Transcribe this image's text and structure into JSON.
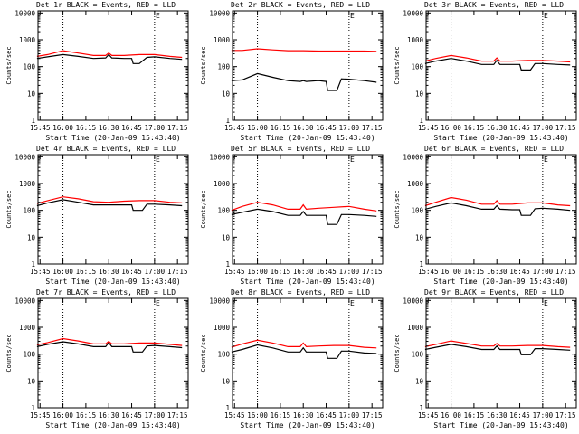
{
  "figure": {
    "axis_label_x": "Start Time (20-Jan-09 15:43:40)",
    "axis_label_y": "Counts/sec",
    "x_ticks": [
      "15:45",
      "16:00",
      "16:15",
      "16:30",
      "16:45",
      "17:00",
      "17:15"
    ],
    "y_ticks": [
      "1",
      "10",
      "100",
      "1000",
      "10000"
    ]
  },
  "chart_data": [
    {
      "type": "line",
      "title": "Det 1r BLACK = Events, RED = LLD",
      "yscale": "log",
      "ylim": [
        1,
        12000
      ],
      "xlim": [
        "15:43:40",
        "17:22"
      ],
      "vlines": [
        "16:00",
        "17:00"
      ],
      "corner_mark": "E",
      "series": [
        {
          "name": "BLACK = Events",
          "color": "#000000",
          "x": [
            "15:43",
            "15:50",
            "16:00",
            "16:10",
            "16:20",
            "16:28",
            "16:30",
            "16:32",
            "16:40",
            "16:45",
            "16:46",
            "16:50",
            "16:55",
            "17:00",
            "17:10",
            "17:18"
          ],
          "values": [
            200,
            230,
            280,
            240,
            200,
            210,
            280,
            210,
            200,
            200,
            130,
            130,
            220,
            230,
            200,
            185
          ]
        },
        {
          "name": "RED = LLD",
          "color": "#ff0000",
          "x": [
            "15:43",
            "15:50",
            "16:00",
            "16:10",
            "16:20",
            "16:28",
            "16:30",
            "16:32",
            "16:40",
            "16:50",
            "17:00",
            "17:10",
            "17:18"
          ],
          "values": [
            240,
            280,
            390,
            320,
            260,
            260,
            320,
            260,
            260,
            280,
            280,
            240,
            220
          ]
        }
      ]
    },
    {
      "type": "line",
      "title": "Det 2r BLACK = Events, RED = LLD",
      "yscale": "log",
      "ylim": [
        1,
        12000
      ],
      "xlim": [
        "15:43:40",
        "17:22"
      ],
      "vlines": [
        "16:00",
        "17:00"
      ],
      "corner_mark": "E",
      "series": [
        {
          "name": "BLACK = Events",
          "color": "#000000",
          "x": [
            "15:43",
            "15:50",
            "16:00",
            "16:10",
            "16:20",
            "16:28",
            "16:30",
            "16:32",
            "16:40",
            "16:45",
            "16:46",
            "16:52",
            "16:55",
            "17:00",
            "17:10",
            "17:18"
          ],
          "values": [
            30,
            32,
            55,
            40,
            30,
            28,
            30,
            28,
            30,
            28,
            13,
            13,
            35,
            34,
            30,
            26
          ]
        },
        {
          "name": "RED = LLD",
          "color": "#ff0000",
          "x": [
            "15:43",
            "15:50",
            "16:00",
            "16:10",
            "16:20",
            "16:30",
            "16:40",
            "16:50",
            "17:00",
            "17:10",
            "17:18"
          ],
          "values": [
            400,
            400,
            460,
            420,
            390,
            390,
            380,
            380,
            380,
            380,
            370
          ]
        }
      ]
    },
    {
      "type": "line",
      "title": "Det 3r BLACK = Events, RED = LLD",
      "yscale": "log",
      "ylim": [
        1,
        12000
      ],
      "xlim": [
        "15:43:40",
        "17:22"
      ],
      "vlines": [
        "16:00",
        "17:00"
      ],
      "corner_mark": "E",
      "series": [
        {
          "name": "BLACK = Events",
          "color": "#000000",
          "x": [
            "15:43",
            "15:50",
            "16:00",
            "16:10",
            "16:20",
            "16:28",
            "16:30",
            "16:32",
            "16:40",
            "16:45",
            "16:46",
            "16:52",
            "16:55",
            "17:00",
            "17:10",
            "17:18"
          ],
          "values": [
            130,
            160,
            200,
            160,
            120,
            120,
            170,
            120,
            120,
            120,
            75,
            75,
            130,
            130,
            120,
            115
          ]
        },
        {
          "name": "RED = LLD",
          "color": "#ff0000",
          "x": [
            "15:43",
            "15:50",
            "16:00",
            "16:10",
            "16:20",
            "16:28",
            "16:30",
            "16:32",
            "16:40",
            "16:50",
            "17:00",
            "17:10",
            "17:18"
          ],
          "values": [
            160,
            200,
            260,
            210,
            160,
            160,
            210,
            160,
            160,
            170,
            170,
            160,
            150
          ]
        }
      ]
    },
    {
      "type": "line",
      "title": "Det 4r BLACK = Events, RED = LLD",
      "yscale": "log",
      "ylim": [
        1,
        12000
      ],
      "xlim": [
        "15:43:40",
        "17:22"
      ],
      "vlines": [
        "16:00",
        "17:00"
      ],
      "corner_mark": "E",
      "series": [
        {
          "name": "BLACK = Events",
          "color": "#000000",
          "x": [
            "15:43",
            "15:50",
            "16:00",
            "16:10",
            "16:20",
            "16:30",
            "16:40",
            "16:45",
            "16:46",
            "16:52",
            "16:55",
            "17:00",
            "17:10",
            "17:18"
          ],
          "values": [
            150,
            190,
            250,
            200,
            160,
            160,
            160,
            160,
            100,
            100,
            170,
            170,
            160,
            150
          ]
        },
        {
          "name": "RED = LLD",
          "color": "#ff0000",
          "x": [
            "15:43",
            "15:50",
            "16:00",
            "16:10",
            "16:20",
            "16:30",
            "16:40",
            "16:50",
            "17:00",
            "17:10",
            "17:18"
          ],
          "values": [
            180,
            230,
            320,
            270,
            210,
            200,
            220,
            230,
            230,
            200,
            190
          ]
        }
      ]
    },
    {
      "type": "line",
      "title": "Det 5r BLACK = Events, RED = LLD",
      "yscale": "log",
      "ylim": [
        1,
        12000
      ],
      "xlim": [
        "15:43:40",
        "17:22"
      ],
      "vlines": [
        "16:00",
        "17:00"
      ],
      "corner_mark": "E",
      "series": [
        {
          "name": "BLACK = Events",
          "color": "#000000",
          "x": [
            "15:43",
            "15:50",
            "16:00",
            "16:10",
            "16:20",
            "16:28",
            "16:30",
            "16:32",
            "16:40",
            "16:45",
            "16:46",
            "16:52",
            "16:55",
            "17:00",
            "17:10",
            "17:18"
          ],
          "values": [
            70,
            85,
            110,
            90,
            65,
            65,
            90,
            65,
            65,
            65,
            30,
            30,
            70,
            70,
            65,
            60
          ]
        },
        {
          "name": "RED = LLD",
          "color": "#ff0000",
          "x": [
            "15:43",
            "15:50",
            "16:00",
            "16:10",
            "16:20",
            "16:28",
            "16:30",
            "16:32",
            "16:40",
            "16:50",
            "17:00",
            "17:10",
            "17:18"
          ],
          "values": [
            100,
            140,
            200,
            160,
            110,
            110,
            160,
            110,
            120,
            130,
            140,
            110,
            95
          ]
        }
      ]
    },
    {
      "type": "line",
      "title": "Det 6r BLACK = Events, RED = LLD",
      "yscale": "log",
      "ylim": [
        1,
        12000
      ],
      "xlim": [
        "15:43:40",
        "17:22"
      ],
      "vlines": [
        "16:00",
        "17:00"
      ],
      "corner_mark": "E",
      "series": [
        {
          "name": "BLACK = Events",
          "color": "#000000",
          "x": [
            "15:43",
            "15:50",
            "16:00",
            "16:10",
            "16:20",
            "16:28",
            "16:30",
            "16:32",
            "16:40",
            "16:45",
            "16:46",
            "16:52",
            "16:55",
            "17:00",
            "17:10",
            "17:18"
          ],
          "values": [
            110,
            140,
            190,
            150,
            110,
            110,
            150,
            110,
            105,
            105,
            65,
            65,
            115,
            120,
            110,
            100
          ]
        },
        {
          "name": "RED = LLD",
          "color": "#ff0000",
          "x": [
            "15:43",
            "15:50",
            "16:00",
            "16:10",
            "16:20",
            "16:28",
            "16:30",
            "16:32",
            "16:40",
            "16:50",
            "17:00",
            "17:10",
            "17:18"
          ],
          "values": [
            150,
            200,
            300,
            240,
            170,
            170,
            230,
            170,
            170,
            190,
            190,
            160,
            150
          ]
        }
      ]
    },
    {
      "type": "line",
      "title": "Det 7r BLACK = Events, RED = LLD",
      "yscale": "log",
      "ylim": [
        1,
        12000
      ],
      "xlim": [
        "15:43:40",
        "17:22"
      ],
      "vlines": [
        "16:00",
        "17:00"
      ],
      "corner_mark": "E",
      "series": [
        {
          "name": "BLACK = Events",
          "color": "#000000",
          "x": [
            "15:43",
            "15:50",
            "16:00",
            "16:10",
            "16:20",
            "16:28",
            "16:30",
            "16:32",
            "16:40",
            "16:45",
            "16:46",
            "16:52",
            "16:55",
            "17:00",
            "17:10",
            "17:18"
          ],
          "values": [
            190,
            230,
            290,
            240,
            190,
            190,
            270,
            190,
            190,
            190,
            120,
            120,
            200,
            210,
            190,
            175
          ]
        },
        {
          "name": "RED = LLD",
          "color": "#ff0000",
          "x": [
            "15:43",
            "15:50",
            "16:00",
            "16:10",
            "16:20",
            "16:28",
            "16:30",
            "16:32",
            "16:40",
            "16:50",
            "17:00",
            "17:10",
            "17:18"
          ],
          "values": [
            220,
            270,
            380,
            310,
            240,
            240,
            300,
            240,
            240,
            260,
            260,
            230,
            210
          ]
        }
      ]
    },
    {
      "type": "line",
      "title": "Det 8r BLACK = Events, RED = LLD",
      "yscale": "log",
      "ylim": [
        1,
        12000
      ],
      "xlim": [
        "15:43:40",
        "17:22"
      ],
      "vlines": [
        "16:00",
        "17:00"
      ],
      "corner_mark": "E",
      "series": [
        {
          "name": "BLACK = Events",
          "color": "#000000",
          "x": [
            "15:43",
            "15:50",
            "16:00",
            "16:10",
            "16:20",
            "16:28",
            "16:30",
            "16:32",
            "16:40",
            "16:45",
            "16:46",
            "16:52",
            "16:55",
            "17:00",
            "17:10",
            "17:18"
          ],
          "values": [
            120,
            150,
            220,
            170,
            120,
            120,
            170,
            120,
            120,
            120,
            70,
            70,
            130,
            130,
            110,
            105
          ]
        },
        {
          "name": "RED = LLD",
          "color": "#ff0000",
          "x": [
            "15:43",
            "15:50",
            "16:00",
            "16:10",
            "16:20",
            "16:28",
            "16:30",
            "16:32",
            "16:40",
            "16:50",
            "17:00",
            "17:10",
            "17:18"
          ],
          "values": [
            180,
            240,
            330,
            260,
            190,
            190,
            260,
            190,
            200,
            210,
            210,
            180,
            170
          ]
        }
      ]
    },
    {
      "type": "line",
      "title": "Det 9r BLACK = Events, RED = LLD",
      "yscale": "log",
      "ylim": [
        1,
        12000
      ],
      "xlim": [
        "15:43:40",
        "17:22"
      ],
      "vlines": [
        "16:00",
        "17:00"
      ],
      "corner_mark": "E",
      "series": [
        {
          "name": "BLACK = Events",
          "color": "#000000",
          "x": [
            "15:43",
            "15:50",
            "16:00",
            "16:10",
            "16:20",
            "16:28",
            "16:30",
            "16:32",
            "16:40",
            "16:45",
            "16:46",
            "16:52",
            "16:55",
            "17:00",
            "17:10",
            "17:18"
          ],
          "values": [
            150,
            180,
            230,
            190,
            150,
            150,
            200,
            150,
            150,
            150,
            95,
            95,
            160,
            160,
            150,
            140
          ]
        },
        {
          "name": "RED = LLD",
          "color": "#ff0000",
          "x": [
            "15:43",
            "15:50",
            "16:00",
            "16:10",
            "16:20",
            "16:28",
            "16:30",
            "16:32",
            "16:40",
            "16:50",
            "17:00",
            "17:10",
            "17:18"
          ],
          "values": [
            190,
            230,
            310,
            250,
            200,
            200,
            250,
            200,
            200,
            210,
            210,
            190,
            180
          ]
        }
      ]
    }
  ]
}
